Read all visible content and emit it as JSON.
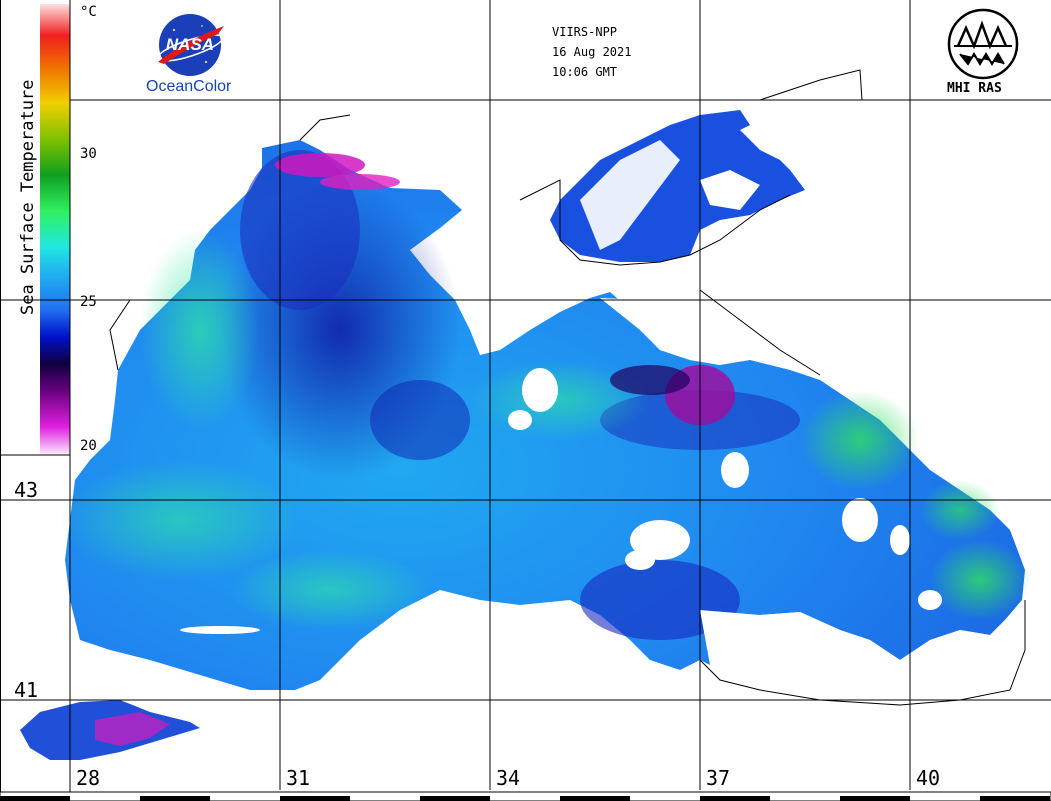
{
  "map": {
    "sensor": "VIIRS-NPP",
    "date": "16 Aug 2021",
    "time": "10:06 GMT",
    "variable": "Sea Surface Temperature",
    "unit": "°C",
    "colorbar_ticks": [
      "30",
      "25",
      "20"
    ],
    "lat_labels": [
      "43",
      "41"
    ],
    "lon_labels": [
      "28",
      "31",
      "34",
      "37",
      "40"
    ],
    "logos": {
      "nasa_text": "NASA",
      "oceancolor_text": "OceanColor",
      "mhi_text": "MHI RAS"
    },
    "colors": {
      "sst_20": "#f8b8f8",
      "sst_22": "#c800c8",
      "sst_23": "#1a0050",
      "sst_24": "#1010c8",
      "sst_25": "#2060e8",
      "sst_26": "#20a0f0",
      "sst_27": "#20e0e0",
      "sst_28": "#20c860",
      "sst_30": "#10a020",
      "sst_31": "#b0b000",
      "sst_33": "#f08000",
      "sst_35": "#f01010"
    }
  }
}
